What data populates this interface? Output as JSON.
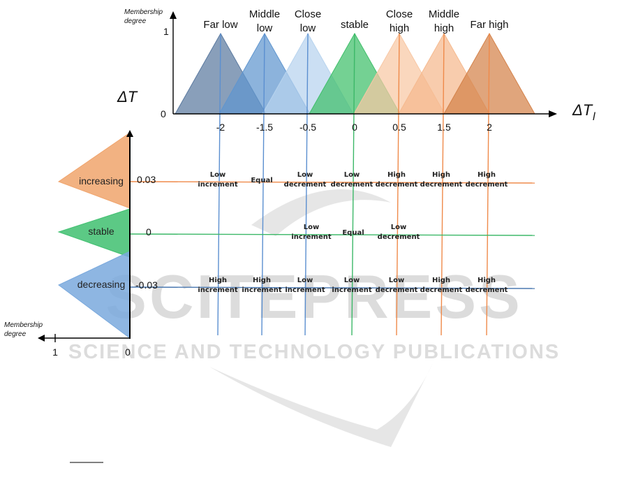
{
  "watermark": {
    "main": "SCITEPRESS",
    "sub": "SCIENCE AND TECHNOLOGY PUBLICATIONS"
  },
  "top_axis": {
    "membership_label": [
      "Membership",
      "degree"
    ],
    "y_ticks": [
      "1",
      "0"
    ],
    "x_label": "ΔT",
    "x_label_sub": "l",
    "x_ticks": [
      "-2",
      "-1.5",
      "-0.5",
      "0",
      "0.5",
      "1.5",
      "2"
    ]
  },
  "top_sets": [
    {
      "label": [
        "Far low"
      ],
      "color": "#5b7aa0"
    },
    {
      "label": [
        "Middle",
        "low"
      ],
      "color": "#5f95cf"
    },
    {
      "label": [
        "Close",
        "low"
      ],
      "color": "#b7d3ee"
    },
    {
      "label": [
        "stable"
      ],
      "color": "#3fbf6a"
    },
    {
      "label": [
        "Close",
        "high"
      ],
      "color": "#f8c7a4"
    },
    {
      "label": [
        "Middle",
        "high"
      ],
      "color": "#f5b98e"
    },
    {
      "label": [
        "Far high"
      ],
      "color": "#d4824a"
    }
  ],
  "left_axis": {
    "title": "ΔT",
    "membership_label": [
      "Membership",
      "degree"
    ],
    "x_ticks": [
      "1",
      "0"
    ],
    "y_ticks": [
      "0.03",
      "0",
      "-0.03"
    ]
  },
  "left_sets": [
    {
      "label": "increasing",
      "color": "#f0a46c"
    },
    {
      "label": "stable",
      "color": "#40c070"
    },
    {
      "label": "decreasing",
      "color": "#7aa9dd"
    }
  ],
  "rule_rows": [
    {
      "cells": [
        [
          "Low",
          "increment"
        ],
        [
          "Equal"
        ],
        [
          "Low",
          "decrement"
        ],
        [
          "Low",
          "decrement"
        ],
        [
          "High",
          "decrement"
        ],
        [
          "High",
          "decrement"
        ],
        [
          "High",
          "decrement"
        ]
      ]
    },
    {
      "cells": [
        [],
        [],
        [
          "Low",
          "increment"
        ],
        [
          "Equal"
        ],
        [
          "Low",
          "decrement"
        ],
        [],
        []
      ]
    },
    {
      "cells": [
        [
          "High",
          "increment"
        ],
        [
          "High",
          "increment"
        ],
        [
          "Low",
          "increment"
        ],
        [
          "Low",
          "increment"
        ],
        [
          "Low",
          "decrement"
        ],
        [
          "High",
          "decrement"
        ],
        [
          "High",
          "decrement"
        ]
      ]
    }
  ]
}
